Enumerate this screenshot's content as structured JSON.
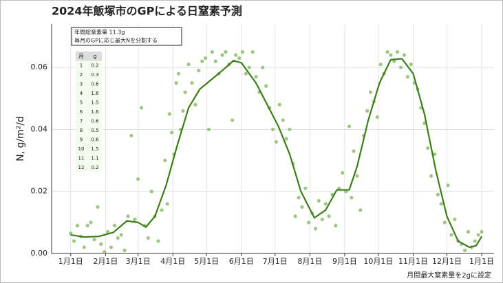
{
  "chart_data": {
    "type": "scatter",
    "title": "2024年飯塚市のGPによる日窒素予測",
    "y_label": "N, g/m²/d",
    "caption": "月間最大窒素量を2gに設定",
    "annotation": [
      "年間総窒素量 11.3g",
      "毎月のGPに応じ最大Nを分割する"
    ],
    "table": {
      "header": [
        "月",
        "g"
      ],
      "rows": [
        [
          1,
          0.2
        ],
        [
          2,
          0.3
        ],
        [
          3,
          0.6
        ],
        [
          4,
          1.6
        ],
        [
          5,
          1.5
        ],
        [
          6,
          1.6
        ],
        [
          7,
          0.6
        ],
        [
          8,
          0.5
        ],
        [
          9,
          0.6
        ],
        [
          10,
          1.5
        ],
        [
          11,
          1.1
        ],
        [
          12,
          0.2
        ]
      ]
    },
    "xlim": [
      -17,
      377
    ],
    "ylim": [
      0,
      0.074
    ],
    "xticks": [
      {
        "value": 0,
        "label": "1月1日"
      },
      {
        "value": 31,
        "label": "2月1日"
      },
      {
        "value": 60,
        "label": "3月1日"
      },
      {
        "value": 91,
        "label": "4月1日"
      },
      {
        "value": 121,
        "label": "5月1日"
      },
      {
        "value": 152,
        "label": "6月1日"
      },
      {
        "value": 182,
        "label": "7月1日"
      },
      {
        "value": 213,
        "label": "8月1日"
      },
      {
        "value": 244,
        "label": "9月1日"
      },
      {
        "value": 274,
        "label": "10月1日"
      },
      {
        "value": 305,
        "label": "11月1日"
      },
      {
        "value": 335,
        "label": "12月1日"
      },
      {
        "value": 366,
        "label": "1月1日"
      }
    ],
    "yticks": [
      {
        "value": 0,
        "label": "0.00"
      },
      {
        "value": 0.02,
        "label": "0.02"
      },
      {
        "value": 0.04,
        "label": "0.04"
      },
      {
        "value": 0.06,
        "label": "0.06"
      }
    ],
    "grid": true,
    "layers": [
      {
        "type": "scatter",
        "color": "#8dbb6b",
        "x": [
          0,
          3,
          6,
          9,
          12,
          15,
          18,
          21,
          24,
          27,
          30,
          33,
          36,
          39,
          42,
          45,
          48,
          51,
          54,
          57,
          60,
          63,
          66,
          69,
          72,
          75,
          78,
          81,
          84,
          86,
          88,
          90,
          92,
          94,
          96,
          98,
          100,
          102,
          105,
          108,
          111,
          114,
          117,
          120,
          123,
          126,
          129,
          132,
          135,
          138,
          141,
          144,
          147,
          150,
          153,
          156,
          159,
          162,
          165,
          168,
          171,
          174,
          177,
          180,
          183,
          186,
          189,
          192,
          195,
          198,
          200,
          203,
          206,
          209,
          212,
          215,
          218,
          221,
          224,
          227,
          230,
          233,
          236,
          239,
          242,
          245,
          248,
          250,
          252,
          255,
          258,
          261,
          264,
          267,
          270,
          273,
          276,
          279,
          282,
          285,
          288,
          291,
          294,
          297,
          300,
          303,
          306,
          309,
          312,
          315,
          318,
          321,
          324,
          327,
          330,
          333,
          336,
          339,
          342,
          345,
          348,
          351,
          354,
          357,
          360,
          363,
          366
        ],
        "y": [
          0.0065,
          0.004,
          0.009,
          0.0055,
          0.002,
          0.009,
          0.01,
          0.0045,
          0.015,
          0.003,
          0.0005,
          0.007,
          0.002,
          0.009,
          0.005,
          0.006,
          0.001,
          0.012,
          0.038,
          0.011,
          0.024,
          0.047,
          0.009,
          0.005,
          0.02,
          0.012,
          0.004,
          0.014,
          0.03,
          0.016,
          0.045,
          0.039,
          0.032,
          0.055,
          0.058,
          0.04,
          0.046,
          0.052,
          0.061,
          0.055,
          0.048,
          0.059,
          0.062,
          0.063,
          0.04,
          0.065,
          0.062,
          0.058,
          0.064,
          0.065,
          0.061,
          0.043,
          0.064,
          0.063,
          0.065,
          0.058,
          0.06,
          0.065,
          0.057,
          0.052,
          0.06,
          0.054,
          0.047,
          0.04,
          0.036,
          0.048,
          0.043,
          0.037,
          0.04,
          0.029,
          0.012,
          0.018,
          0.015,
          0.021,
          0.01,
          0.013,
          0.008,
          0.017,
          0.011,
          0.016,
          0.012,
          0.019,
          0.009,
          0.021,
          0.026,
          0.02,
          0.041,
          0.018,
          0.033,
          0.025,
          0.014,
          0.038,
          0.046,
          0.052,
          0.049,
          0.044,
          0.061,
          0.058,
          0.065,
          0.064,
          0.062,
          0.065,
          0.06,
          0.064,
          0.057,
          0.061,
          0.055,
          0.053,
          0.047,
          0.042,
          0.034,
          0.025,
          0.032,
          0.019,
          0.016,
          0.01,
          0.022,
          0.006,
          0.011,
          0.004,
          0.003,
          0.001,
          0.007,
          0.002,
          0.004,
          0.006,
          0.007
        ]
      },
      {
        "type": "line",
        "color": "#3b7d17",
        "x": [
          0,
          12,
          25,
          38,
          50,
          60,
          67,
          75,
          85,
          95,
          105,
          115,
          125,
          135,
          145,
          152,
          165,
          175,
          185,
          195,
          205,
          217,
          227,
          237,
          248,
          255,
          265,
          275,
          285,
          295,
          305,
          315,
          325,
          335,
          345,
          355,
          361,
          366
        ],
        "y": [
          0.006,
          0.0053,
          0.0055,
          0.0068,
          0.0105,
          0.01,
          0.0085,
          0.012,
          0.022,
          0.035,
          0.047,
          0.053,
          0.056,
          0.059,
          0.0622,
          0.0615,
          0.055,
          0.048,
          0.041,
          0.032,
          0.02,
          0.0115,
          0.014,
          0.0205,
          0.0205,
          0.028,
          0.043,
          0.055,
          0.0625,
          0.0628,
          0.058,
          0.045,
          0.027,
          0.012,
          0.004,
          0.002,
          0.0025,
          0.0055
        ]
      }
    ]
  }
}
